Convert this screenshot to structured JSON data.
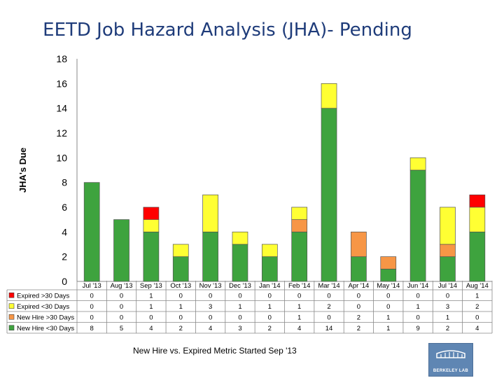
{
  "title": "EETD Job Hazard Analysis (JHA)- Pending",
  "footnote": "New Hire vs. Expired Metric Started Sep '13",
  "logo_text": "BERKELEY LAB",
  "chart_data": {
    "type": "bar",
    "stacked": true,
    "ylabel": "JHA's Due",
    "xlabel": "",
    "ylim": [
      0,
      18
    ],
    "yticks": [
      0,
      2,
      4,
      6,
      8,
      10,
      12,
      14,
      16,
      18
    ],
    "grid": false,
    "legend": "table-left",
    "categories": [
      "Jul '13",
      "Aug '13",
      "Sep '13",
      "Oct '13",
      "Nov '13",
      "Dec '13",
      "Jan '14",
      "Feb '14",
      "Mar '14",
      "Apr '14",
      "May '14",
      "Jun '14",
      "Jul '14",
      "Aug '14"
    ],
    "series": [
      {
        "name": "Expired >30 Days",
        "color": "#ff0000",
        "values": [
          0,
          0,
          1,
          0,
          0,
          0,
          0,
          0,
          0,
          0,
          0,
          0,
          0,
          1
        ]
      },
      {
        "name": "Expired <30 Days",
        "color": "#ffff33",
        "values": [
          0,
          0,
          1,
          1,
          3,
          1,
          1,
          1,
          2,
          0,
          0,
          1,
          3,
          2
        ]
      },
      {
        "name": "New Hire >30 Days",
        "color": "#f79646",
        "values": [
          0,
          0,
          0,
          0,
          0,
          0,
          0,
          1,
          0,
          2,
          1,
          0,
          1,
          0
        ]
      },
      {
        "name": "New Hire <30 Days",
        "color": "#3ea33e",
        "values": [
          8,
          5,
          4,
          2,
          4,
          3,
          2,
          4,
          14,
          2,
          1,
          9,
          2,
          4
        ]
      }
    ]
  }
}
